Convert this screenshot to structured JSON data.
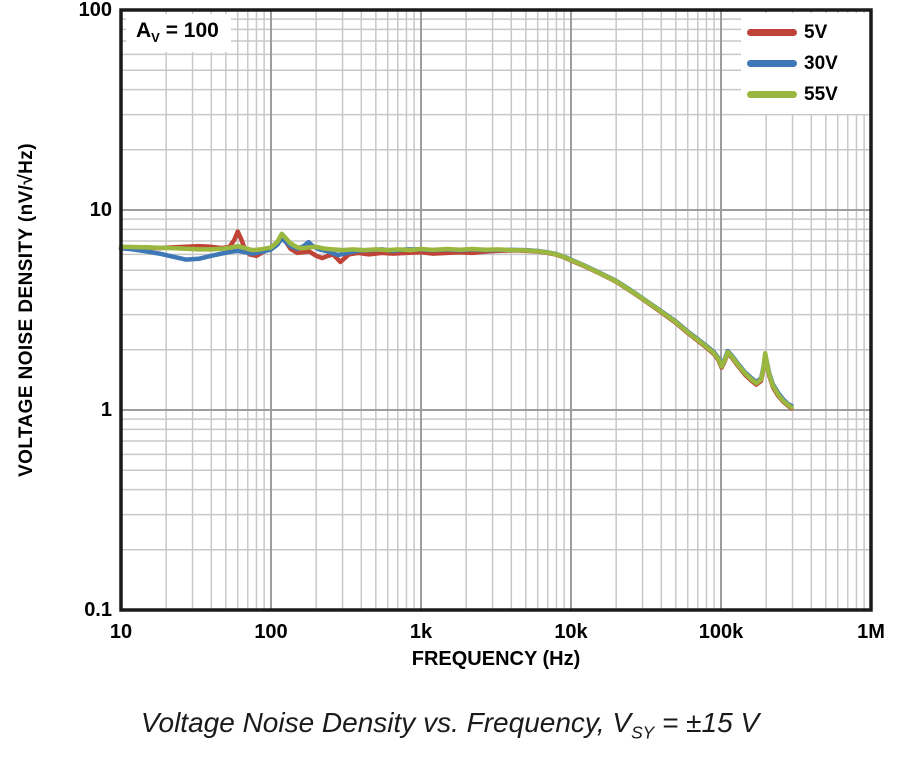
{
  "colors": {
    "grid_major": "#9e9e9e",
    "grid_minor": "#c8c8c8",
    "frame": "#1a1a1a",
    "background": "#ffffff",
    "text": "#000000"
  },
  "annotation": {
    "base": "A",
    "sub": "V",
    "rest": " = 100"
  },
  "caption": {
    "part1": "Voltage Noise Density vs. Frequency, V",
    "sub": "SY",
    "part2": " = ±15 V"
  },
  "chart_data": {
    "type": "line",
    "title": "Voltage Noise Density vs. Frequency, VSY = ±15 V",
    "xlabel": "FREQUENCY (Hz)",
    "ylabel": "VOLTAGE NOISE DENSITY (nV/√Hz)",
    "x_scale": "log",
    "y_scale": "log",
    "xlim": [
      10,
      1000000
    ],
    "ylim": [
      0.1,
      100
    ],
    "grid": true,
    "legend_position": "top-right",
    "x_ticks": [
      {
        "value": 10,
        "label": "10"
      },
      {
        "value": 100,
        "label": "100"
      },
      {
        "value": 1000,
        "label": "1k"
      },
      {
        "value": 10000,
        "label": "10k"
      },
      {
        "value": 100000,
        "label": "100k"
      },
      {
        "value": 1000000,
        "label": "1M"
      }
    ],
    "y_ticks": [
      {
        "value": 0.1,
        "label": "0.1"
      },
      {
        "value": 1,
        "label": "1"
      },
      {
        "value": 10,
        "label": "10"
      },
      {
        "value": 100,
        "label": "100"
      }
    ],
    "series": [
      {
        "name": "5V",
        "color": "#bf4437",
        "points": [
          [
            10,
            6.4
          ],
          [
            12,
            6.5
          ],
          [
            15,
            6.5
          ],
          [
            18,
            6.45
          ],
          [
            22,
            6.5
          ],
          [
            27,
            6.55
          ],
          [
            33,
            6.6
          ],
          [
            40,
            6.55
          ],
          [
            47,
            6.45
          ],
          [
            53,
            6.55
          ],
          [
            57,
            7.1
          ],
          [
            60,
            7.8
          ],
          [
            63,
            7.2
          ],
          [
            67,
            6.4
          ],
          [
            72,
            6.0
          ],
          [
            80,
            5.9
          ],
          [
            90,
            6.2
          ],
          [
            100,
            6.5
          ],
          [
            110,
            6.9
          ],
          [
            118,
            7.5
          ],
          [
            126,
            6.9
          ],
          [
            135,
            6.4
          ],
          [
            150,
            6.1
          ],
          [
            165,
            6.15
          ],
          [
            180,
            6.2
          ],
          [
            200,
            5.9
          ],
          [
            220,
            5.75
          ],
          [
            240,
            5.9
          ],
          [
            260,
            6.0
          ],
          [
            290,
            5.5
          ],
          [
            330,
            6.0
          ],
          [
            380,
            6.1
          ],
          [
            450,
            6.0
          ],
          [
            550,
            6.1
          ],
          [
            650,
            6.05
          ],
          [
            800,
            6.1
          ],
          [
            1000,
            6.15
          ],
          [
            1200,
            6.05
          ],
          [
            1500,
            6.1
          ],
          [
            1800,
            6.15
          ],
          [
            2200,
            6.1
          ],
          [
            2700,
            6.2
          ],
          [
            3300,
            6.25
          ],
          [
            4000,
            6.28
          ],
          [
            5000,
            6.26
          ],
          [
            6000,
            6.2
          ],
          [
            7000,
            6.1
          ],
          [
            8000,
            5.98
          ],
          [
            9000,
            5.8
          ],
          [
            10000,
            5.6
          ],
          [
            12000,
            5.28
          ],
          [
            15000,
            4.88
          ],
          [
            20000,
            4.38
          ],
          [
            25000,
            3.93
          ],
          [
            30000,
            3.58
          ],
          [
            40000,
            3.08
          ],
          [
            50000,
            2.73
          ],
          [
            60000,
            2.43
          ],
          [
            70000,
            2.22
          ],
          [
            80000,
            2.05
          ],
          [
            90000,
            1.9
          ],
          [
            96000,
            1.78
          ],
          [
            101000,
            1.63
          ],
          [
            106000,
            1.76
          ],
          [
            111000,
            1.93
          ],
          [
            118000,
            1.83
          ],
          [
            130000,
            1.66
          ],
          [
            145000,
            1.5
          ],
          [
            160000,
            1.4
          ],
          [
            172000,
            1.34
          ],
          [
            185000,
            1.4
          ],
          [
            192000,
            1.6
          ],
          [
            197000,
            1.85
          ],
          [
            203000,
            1.68
          ],
          [
            210000,
            1.48
          ],
          [
            222000,
            1.3
          ],
          [
            240000,
            1.18
          ],
          [
            260000,
            1.1
          ],
          [
            280000,
            1.05
          ],
          [
            295000,
            1.02
          ]
        ]
      },
      {
        "name": "30V",
        "color": "#3e78b7",
        "points": [
          [
            10,
            6.45
          ],
          [
            12,
            6.35
          ],
          [
            15,
            6.2
          ],
          [
            18,
            6.05
          ],
          [
            22,
            5.85
          ],
          [
            27,
            5.65
          ],
          [
            33,
            5.7
          ],
          [
            40,
            5.9
          ],
          [
            47,
            6.05
          ],
          [
            55,
            6.2
          ],
          [
            60,
            6.25
          ],
          [
            67,
            6.15
          ],
          [
            75,
            6.05
          ],
          [
            85,
            6.15
          ],
          [
            100,
            6.35
          ],
          [
            110,
            6.7
          ],
          [
            118,
            7.2
          ],
          [
            126,
            6.9
          ],
          [
            135,
            6.6
          ],
          [
            150,
            6.4
          ],
          [
            165,
            6.6
          ],
          [
            178,
            6.9
          ],
          [
            190,
            6.6
          ],
          [
            210,
            6.35
          ],
          [
            240,
            6.2
          ],
          [
            280,
            5.95
          ],
          [
            320,
            6.1
          ],
          [
            380,
            6.25
          ],
          [
            450,
            6.3
          ],
          [
            550,
            6.35
          ],
          [
            650,
            6.25
          ],
          [
            800,
            6.35
          ],
          [
            1000,
            6.35
          ],
          [
            1200,
            6.3
          ],
          [
            1500,
            6.35
          ],
          [
            1800,
            6.3
          ],
          [
            2200,
            6.35
          ],
          [
            2700,
            6.3
          ],
          [
            3300,
            6.32
          ],
          [
            4000,
            6.32
          ],
          [
            5000,
            6.3
          ],
          [
            6000,
            6.24
          ],
          [
            7000,
            6.14
          ],
          [
            8000,
            6.02
          ],
          [
            9000,
            5.84
          ],
          [
            10000,
            5.64
          ],
          [
            12000,
            5.32
          ],
          [
            15000,
            4.92
          ],
          [
            20000,
            4.42
          ],
          [
            25000,
            3.97
          ],
          [
            30000,
            3.62
          ],
          [
            40000,
            3.12
          ],
          [
            50000,
            2.77
          ],
          [
            60000,
            2.47
          ],
          [
            70000,
            2.26
          ],
          [
            80000,
            2.09
          ],
          [
            90000,
            1.94
          ],
          [
            96000,
            1.82
          ],
          [
            101000,
            1.67
          ],
          [
            106000,
            1.8
          ],
          [
            111000,
            1.97
          ],
          [
            118000,
            1.87
          ],
          [
            130000,
            1.7
          ],
          [
            145000,
            1.54
          ],
          [
            160000,
            1.44
          ],
          [
            172000,
            1.38
          ],
          [
            185000,
            1.44
          ],
          [
            192000,
            1.64
          ],
          [
            197000,
            1.89
          ],
          [
            203000,
            1.72
          ],
          [
            210000,
            1.52
          ],
          [
            222000,
            1.34
          ],
          [
            240000,
            1.22
          ],
          [
            260000,
            1.13
          ],
          [
            280000,
            1.07
          ],
          [
            295000,
            1.05
          ]
        ]
      },
      {
        "name": "55V",
        "color": "#9ab83f",
        "points": [
          [
            10,
            6.55
          ],
          [
            15,
            6.5
          ],
          [
            22,
            6.45
          ],
          [
            33,
            6.35
          ],
          [
            40,
            6.35
          ],
          [
            47,
            6.4
          ],
          [
            55,
            6.5
          ],
          [
            60,
            6.6
          ],
          [
            67,
            6.45
          ],
          [
            75,
            6.3
          ],
          [
            85,
            6.35
          ],
          [
            100,
            6.5
          ],
          [
            110,
            6.9
          ],
          [
            118,
            7.6
          ],
          [
            126,
            7.2
          ],
          [
            135,
            6.8
          ],
          [
            150,
            6.5
          ],
          [
            165,
            6.45
          ],
          [
            180,
            6.5
          ],
          [
            200,
            6.55
          ],
          [
            230,
            6.4
          ],
          [
            260,
            6.35
          ],
          [
            300,
            6.3
          ],
          [
            350,
            6.35
          ],
          [
            420,
            6.3
          ],
          [
            500,
            6.35
          ],
          [
            600,
            6.3
          ],
          [
            700,
            6.35
          ],
          [
            850,
            6.3
          ],
          [
            1000,
            6.38
          ],
          [
            1200,
            6.32
          ],
          [
            1500,
            6.38
          ],
          [
            1800,
            6.33
          ],
          [
            2200,
            6.38
          ],
          [
            2700,
            6.33
          ],
          [
            3300,
            6.35
          ],
          [
            4000,
            6.3
          ],
          [
            5000,
            6.28
          ],
          [
            6000,
            6.22
          ],
          [
            7000,
            6.12
          ],
          [
            8000,
            6.0
          ],
          [
            9000,
            5.82
          ],
          [
            10000,
            5.62
          ],
          [
            12000,
            5.3
          ],
          [
            15000,
            4.9
          ],
          [
            20000,
            4.4
          ],
          [
            25000,
            3.95
          ],
          [
            30000,
            3.6
          ],
          [
            40000,
            3.1
          ],
          [
            50000,
            2.75
          ],
          [
            60000,
            2.45
          ],
          [
            70000,
            2.24
          ],
          [
            80000,
            2.07
          ],
          [
            90000,
            1.92
          ],
          [
            96000,
            1.8
          ],
          [
            101000,
            1.65
          ],
          [
            106000,
            1.78
          ],
          [
            111000,
            1.95
          ],
          [
            118000,
            1.85
          ],
          [
            130000,
            1.68
          ],
          [
            145000,
            1.52
          ],
          [
            160000,
            1.42
          ],
          [
            172000,
            1.36
          ],
          [
            185000,
            1.42
          ],
          [
            192000,
            1.62
          ],
          [
            197000,
            1.92
          ],
          [
            203000,
            1.7
          ],
          [
            210000,
            1.5
          ],
          [
            222000,
            1.32
          ],
          [
            240000,
            1.2
          ],
          [
            260000,
            1.11
          ],
          [
            280000,
            1.06
          ],
          [
            295000,
            1.03
          ]
        ]
      }
    ]
  }
}
